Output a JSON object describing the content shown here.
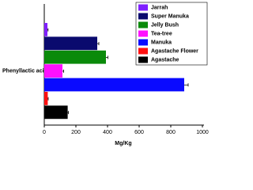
{
  "chart_data": {
    "type": "bar",
    "orientation": "horizontal",
    "categories": [
      "Phenyllactic acid"
    ],
    "x_label": "Mg/Kg",
    "xlim": [
      0,
      1000
    ],
    "xticks": [
      0,
      200,
      400,
      600,
      800,
      1000
    ],
    "series": [
      {
        "name": "Jarrah",
        "color": "#7f1fff",
        "values": [
          20
        ],
        "errors": [
          4
        ]
      },
      {
        "name": "Super Manuka",
        "color": "#0a0a6e",
        "values": [
          335
        ],
        "errors": [
          10
        ]
      },
      {
        "name": "Jelly Bush",
        "color": "#0a8a0a",
        "values": [
          390
        ],
        "errors": [
          12
        ]
      },
      {
        "name": "Tea-tree",
        "color": "#ff10ff",
        "values": [
          115
        ],
        "errors": [
          8
        ]
      },
      {
        "name": "Manuka",
        "color": "#0a0aff",
        "values": [
          885
        ],
        "errors": [
          25
        ]
      },
      {
        "name": "Agastache Flower",
        "color": "#ff1010",
        "values": [
          22
        ],
        "errors": [
          3
        ]
      },
      {
        "name": "Agastache",
        "color": "#000000",
        "values": [
          148
        ],
        "errors": [
          5
        ]
      }
    ],
    "legend": "upper right"
  }
}
